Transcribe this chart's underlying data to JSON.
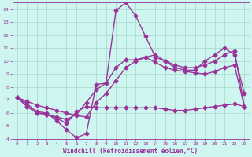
{
  "xlabel": "Windchill (Refroidissement éolien,°C)",
  "xlim": [
    -0.5,
    23.5
  ],
  "ylim": [
    4,
    14.5
  ],
  "xticks": [
    0,
    1,
    2,
    3,
    4,
    5,
    6,
    7,
    8,
    9,
    10,
    11,
    12,
    13,
    14,
    15,
    16,
    17,
    18,
    19,
    20,
    21,
    22,
    23
  ],
  "yticks": [
    4,
    5,
    6,
    7,
    8,
    9,
    10,
    11,
    12,
    13,
    14
  ],
  "bg_color": "#cef5f0",
  "grid_color": "#aaddcc",
  "line_color": "#993399",
  "series": [
    {
      "x": [
        0,
        1,
        2,
        3,
        4,
        5,
        6,
        7,
        8,
        9,
        10,
        11,
        12,
        13,
        14,
        15,
        16,
        17,
        18,
        19,
        20,
        21,
        22,
        23
      ],
      "y": [
        7.2,
        6.7,
        6.1,
        6.0,
        5.4,
        4.7,
        4.1,
        4.4,
        8.2,
        8.3,
        13.9,
        14.5,
        13.5,
        11.9,
        10.3,
        10.0,
        9.5,
        9.3,
        9.3,
        10.0,
        10.5,
        11.0,
        10.5,
        7.5
      ],
      "marker": "D",
      "markersize": 2.5,
      "linewidth": 1.0
    },
    {
      "x": [
        0,
        1,
        2,
        3,
        4,
        5,
        6,
        7,
        8,
        9,
        10,
        11,
        12,
        13,
        14,
        15,
        16,
        17,
        18,
        19,
        20,
        21,
        22,
        23
      ],
      "y": [
        7.2,
        6.9,
        6.6,
        6.4,
        6.2,
        6.0,
        5.8,
        5.7,
        6.8,
        7.5,
        8.5,
        9.5,
        10.0,
        10.3,
        10.5,
        10.0,
        9.7,
        9.5,
        9.5,
        9.7,
        10.0,
        10.5,
        10.8,
        6.5
      ],
      "marker": "D",
      "markersize": 2.5,
      "linewidth": 1.0
    },
    {
      "x": [
        0,
        1,
        2,
        3,
        4,
        5,
        6,
        7,
        8,
        9,
        10,
        11,
        12,
        13,
        14,
        15,
        16,
        17,
        18,
        19,
        20,
        21,
        22,
        23
      ],
      "y": [
        7.2,
        6.5,
        6.0,
        5.9,
        5.7,
        5.5,
        5.9,
        6.8,
        7.8,
        8.3,
        9.5,
        10.1,
        10.1,
        10.3,
        9.9,
        9.5,
        9.3,
        9.2,
        9.1,
        9.0,
        9.2,
        9.5,
        9.7,
        6.5
      ],
      "marker": "D",
      "markersize": 2.5,
      "linewidth": 1.0
    },
    {
      "x": [
        0,
        1,
        2,
        3,
        4,
        5,
        6,
        7,
        8,
        9,
        10,
        11,
        12,
        13,
        14,
        15,
        16,
        17,
        18,
        19,
        20,
        21,
        22,
        23
      ],
      "y": [
        7.2,
        6.5,
        6.0,
        5.9,
        5.6,
        5.2,
        6.1,
        6.5,
        6.4,
        6.4,
        6.4,
        6.4,
        6.4,
        6.4,
        6.4,
        6.3,
        6.2,
        6.2,
        6.3,
        6.4,
        6.5,
        6.6,
        6.7,
        6.5
      ],
      "marker": "D",
      "markersize": 2.5,
      "linewidth": 1.0
    }
  ]
}
